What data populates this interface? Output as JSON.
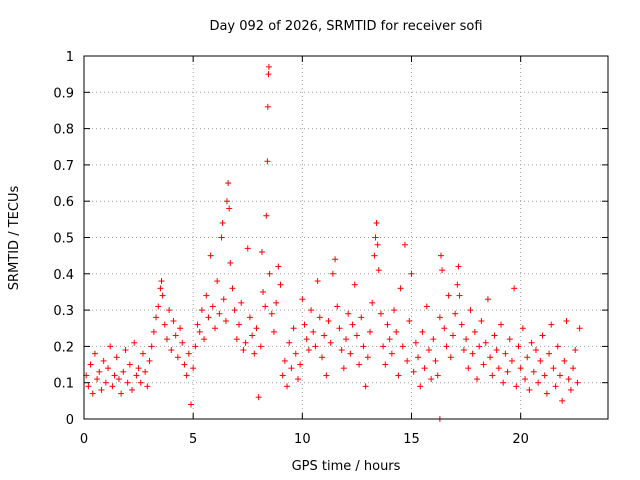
{
  "chart_data": {
    "type": "scatter",
    "title": "Day 092 of 2026, SRMTID for receiver sofi",
    "xlabel": "GPS time / hours",
    "ylabel": "SRMTID / TECUs",
    "xlim": [
      0,
      24
    ],
    "ylim": [
      0,
      1
    ],
    "xticks": [
      0,
      5,
      10,
      15,
      20
    ],
    "xtick_labels": [
      "0",
      "5",
      "10",
      "15",
      "20"
    ],
    "yticks": [
      0,
      0.1,
      0.2,
      0.3,
      0.4,
      0.5,
      0.6,
      0.7,
      0.8,
      0.9,
      1
    ],
    "ytick_labels": [
      "0",
      "0.1",
      "0.2",
      "0.3",
      "0.4",
      "0.5",
      "0.6",
      "0.7",
      "0.8",
      "0.9",
      "1"
    ],
    "grid": true,
    "marker": "+",
    "color": "#ff0000",
    "data_extent_hours": [
      0,
      22.8
    ],
    "series": [
      {
        "name": "SRMTID",
        "points": [
          [
            0.1,
            0.12
          ],
          [
            0.2,
            0.09
          ],
          [
            0.3,
            0.15
          ],
          [
            0.4,
            0.07
          ],
          [
            0.5,
            0.18
          ],
          [
            0.6,
            0.11
          ],
          [
            0.7,
            0.13
          ],
          [
            0.8,
            0.08
          ],
          [
            0.9,
            0.16
          ],
          [
            1.0,
            0.1
          ],
          [
            1.1,
            0.14
          ],
          [
            1.2,
            0.2
          ],
          [
            1.3,
            0.09
          ],
          [
            1.4,
            0.12
          ],
          [
            1.5,
            0.17
          ],
          [
            1.6,
            0.11
          ],
          [
            1.7,
            0.07
          ],
          [
            1.8,
            0.13
          ],
          [
            1.9,
            0.19
          ],
          [
            2.0,
            0.1
          ],
          [
            2.1,
            0.15
          ],
          [
            2.2,
            0.08
          ],
          [
            2.3,
            0.21
          ],
          [
            2.4,
            0.12
          ],
          [
            2.5,
            0.14
          ],
          [
            2.6,
            0.1
          ],
          [
            2.7,
            0.18
          ],
          [
            2.8,
            0.13
          ],
          [
            2.9,
            0.09
          ],
          [
            3.0,
            0.16
          ],
          [
            3.1,
            0.2
          ],
          [
            3.2,
            0.24
          ],
          [
            3.3,
            0.28
          ],
          [
            3.4,
            0.31
          ],
          [
            3.5,
            0.36
          ],
          [
            3.55,
            0.38
          ],
          [
            3.6,
            0.34
          ],
          [
            3.7,
            0.26
          ],
          [
            3.8,
            0.22
          ],
          [
            3.9,
            0.3
          ],
          [
            4.0,
            0.19
          ],
          [
            4.1,
            0.27
          ],
          [
            4.2,
            0.23
          ],
          [
            4.3,
            0.17
          ],
          [
            4.4,
            0.25
          ],
          [
            4.5,
            0.21
          ],
          [
            4.6,
            0.15
          ],
          [
            4.7,
            0.12
          ],
          [
            4.8,
            0.18
          ],
          [
            4.9,
            0.04
          ],
          [
            5.0,
            0.14
          ],
          [
            5.1,
            0.2
          ],
          [
            5.2,
            0.26
          ],
          [
            5.3,
            0.24
          ],
          [
            5.4,
            0.3
          ],
          [
            5.5,
            0.22
          ],
          [
            5.6,
            0.34
          ],
          [
            5.7,
            0.28
          ],
          [
            5.8,
            0.45
          ],
          [
            5.9,
            0.31
          ],
          [
            6.0,
            0.25
          ],
          [
            6.1,
            0.38
          ],
          [
            6.2,
            0.29
          ],
          [
            6.3,
            0.5
          ],
          [
            6.35,
            0.54
          ],
          [
            6.4,
            0.33
          ],
          [
            6.5,
            0.27
          ],
          [
            6.55,
            0.6
          ],
          [
            6.6,
            0.65
          ],
          [
            6.65,
            0.58
          ],
          [
            6.7,
            0.43
          ],
          [
            6.8,
            0.36
          ],
          [
            6.9,
            0.3
          ],
          [
            7.0,
            0.22
          ],
          [
            7.1,
            0.26
          ],
          [
            7.2,
            0.32
          ],
          [
            7.3,
            0.19
          ],
          [
            7.4,
            0.21
          ],
          [
            7.5,
            0.47
          ],
          [
            7.6,
            0.28
          ],
          [
            7.7,
            0.23
          ],
          [
            7.8,
            0.18
          ],
          [
            7.9,
            0.25
          ],
          [
            8.0,
            0.06
          ],
          [
            8.1,
            0.2
          ],
          [
            8.15,
            0.46
          ],
          [
            8.2,
            0.35
          ],
          [
            8.3,
            0.31
          ],
          [
            8.35,
            0.56
          ],
          [
            8.4,
            0.71
          ],
          [
            8.42,
            0.86
          ],
          [
            8.45,
            0.95
          ],
          [
            8.47,
            0.97
          ],
          [
            8.5,
            0.4
          ],
          [
            8.6,
            0.29
          ],
          [
            8.7,
            0.24
          ],
          [
            8.8,
            0.32
          ],
          [
            8.9,
            0.42
          ],
          [
            9.0,
            0.37
          ],
          [
            9.1,
            0.12
          ],
          [
            9.2,
            0.16
          ],
          [
            9.3,
            0.09
          ],
          [
            9.4,
            0.21
          ],
          [
            9.5,
            0.14
          ],
          [
            9.6,
            0.25
          ],
          [
            9.7,
            0.18
          ],
          [
            9.8,
            0.11
          ],
          [
            9.9,
            0.15
          ],
          [
            10.0,
            0.33
          ],
          [
            10.1,
            0.26
          ],
          [
            10.2,
            0.22
          ],
          [
            10.3,
            0.19
          ],
          [
            10.4,
            0.3
          ],
          [
            10.5,
            0.24
          ],
          [
            10.6,
            0.2
          ],
          [
            10.7,
            0.38
          ],
          [
            10.8,
            0.28
          ],
          [
            10.9,
            0.17
          ],
          [
            11.0,
            0.23
          ],
          [
            11.1,
            0.12
          ],
          [
            11.2,
            0.27
          ],
          [
            11.3,
            0.21
          ],
          [
            11.4,
            0.4
          ],
          [
            11.5,
            0.44
          ],
          [
            11.6,
            0.31
          ],
          [
            11.7,
            0.25
          ],
          [
            11.8,
            0.19
          ],
          [
            11.9,
            0.14
          ],
          [
            12.0,
            0.22
          ],
          [
            12.1,
            0.29
          ],
          [
            12.2,
            0.18
          ],
          [
            12.3,
            0.26
          ],
          [
            12.4,
            0.37
          ],
          [
            12.5,
            0.23
          ],
          [
            12.6,
            0.15
          ],
          [
            12.7,
            0.28
          ],
          [
            12.8,
            0.2
          ],
          [
            12.9,
            0.09
          ],
          [
            13.0,
            0.17
          ],
          [
            13.1,
            0.24
          ],
          [
            13.2,
            0.32
          ],
          [
            13.3,
            0.45
          ],
          [
            13.35,
            0.5
          ],
          [
            13.4,
            0.54
          ],
          [
            13.45,
            0.48
          ],
          [
            13.5,
            0.41
          ],
          [
            13.6,
            0.29
          ],
          [
            13.7,
            0.2
          ],
          [
            13.8,
            0.15
          ],
          [
            13.9,
            0.26
          ],
          [
            14.0,
            0.22
          ],
          [
            14.1,
            0.18
          ],
          [
            14.2,
            0.3
          ],
          [
            14.3,
            0.24
          ],
          [
            14.4,
            0.12
          ],
          [
            14.5,
            0.36
          ],
          [
            14.6,
            0.2
          ],
          [
            14.7,
            0.48
          ],
          [
            14.8,
            0.16
          ],
          [
            14.9,
            0.27
          ],
          [
            15.0,
            0.4
          ],
          [
            15.1,
            0.13
          ],
          [
            15.2,
            0.21
          ],
          [
            15.3,
            0.17
          ],
          [
            15.4,
            0.09
          ],
          [
            15.5,
            0.24
          ],
          [
            15.6,
            0.14
          ],
          [
            15.7,
            0.31
          ],
          [
            15.8,
            0.19
          ],
          [
            15.9,
            0.11
          ],
          [
            16.0,
            0.22
          ],
          [
            16.1,
            0.16
          ],
          [
            16.2,
            0.12
          ],
          [
            16.3,
            0.28
          ],
          [
            16.35,
            0.45
          ],
          [
            16.4,
            0.41
          ],
          [
            16.5,
            0.25
          ],
          [
            16.6,
            0.2
          ],
          [
            16.7,
            0.34
          ],
          [
            16.8,
            0.17
          ],
          [
            16.9,
            0.23
          ],
          [
            17.0,
            0.29
          ],
          [
            17.1,
            0.37
          ],
          [
            17.15,
            0.42
          ],
          [
            17.2,
            0.34
          ],
          [
            17.3,
            0.26
          ],
          [
            17.4,
            0.19
          ],
          [
            17.5,
            0.22
          ],
          [
            17.6,
            0.14
          ],
          [
            17.7,
            0.3
          ],
          [
            17.8,
            0.18
          ],
          [
            17.9,
            0.24
          ],
          [
            18.0,
            0.11
          ],
          [
            18.1,
            0.2
          ],
          [
            18.2,
            0.27
          ],
          [
            18.3,
            0.15
          ],
          [
            18.4,
            0.21
          ],
          [
            18.5,
            0.33
          ],
          [
            18.6,
            0.17
          ],
          [
            18.7,
            0.12
          ],
          [
            18.8,
            0.23
          ],
          [
            18.9,
            0.19
          ],
          [
            19.0,
            0.14
          ],
          [
            19.1,
            0.26
          ],
          [
            19.2,
            0.1
          ],
          [
            19.3,
            0.18
          ],
          [
            19.4,
            0.13
          ],
          [
            19.5,
            0.22
          ],
          [
            19.6,
            0.16
          ],
          [
            19.7,
            0.36
          ],
          [
            19.8,
            0.09
          ],
          [
            19.9,
            0.2
          ],
          [
            20.0,
            0.14
          ],
          [
            20.1,
            0.25
          ],
          [
            20.2,
            0.11
          ],
          [
            20.3,
            0.17
          ],
          [
            20.4,
            0.08
          ],
          [
            20.5,
            0.21
          ],
          [
            20.6,
            0.13
          ],
          [
            20.7,
            0.19
          ],
          [
            20.8,
            0.1
          ],
          [
            20.9,
            0.16
          ],
          [
            21.0,
            0.23
          ],
          [
            21.1,
            0.12
          ],
          [
            21.2,
            0.07
          ],
          [
            21.3,
            0.18
          ],
          [
            21.4,
            0.26
          ],
          [
            21.5,
            0.14
          ],
          [
            21.6,
            0.09
          ],
          [
            21.7,
            0.2
          ],
          [
            21.8,
            0.12
          ],
          [
            21.9,
            0.05
          ],
          [
            22.0,
            0.16
          ],
          [
            22.1,
            0.27
          ],
          [
            22.2,
            0.11
          ],
          [
            22.3,
            0.08
          ],
          [
            22.4,
            0.14
          ],
          [
            22.5,
            0.19
          ],
          [
            22.6,
            0.1
          ],
          [
            22.7,
            0.25
          ],
          [
            16.3,
            0.0
          ]
        ]
      }
    ]
  }
}
